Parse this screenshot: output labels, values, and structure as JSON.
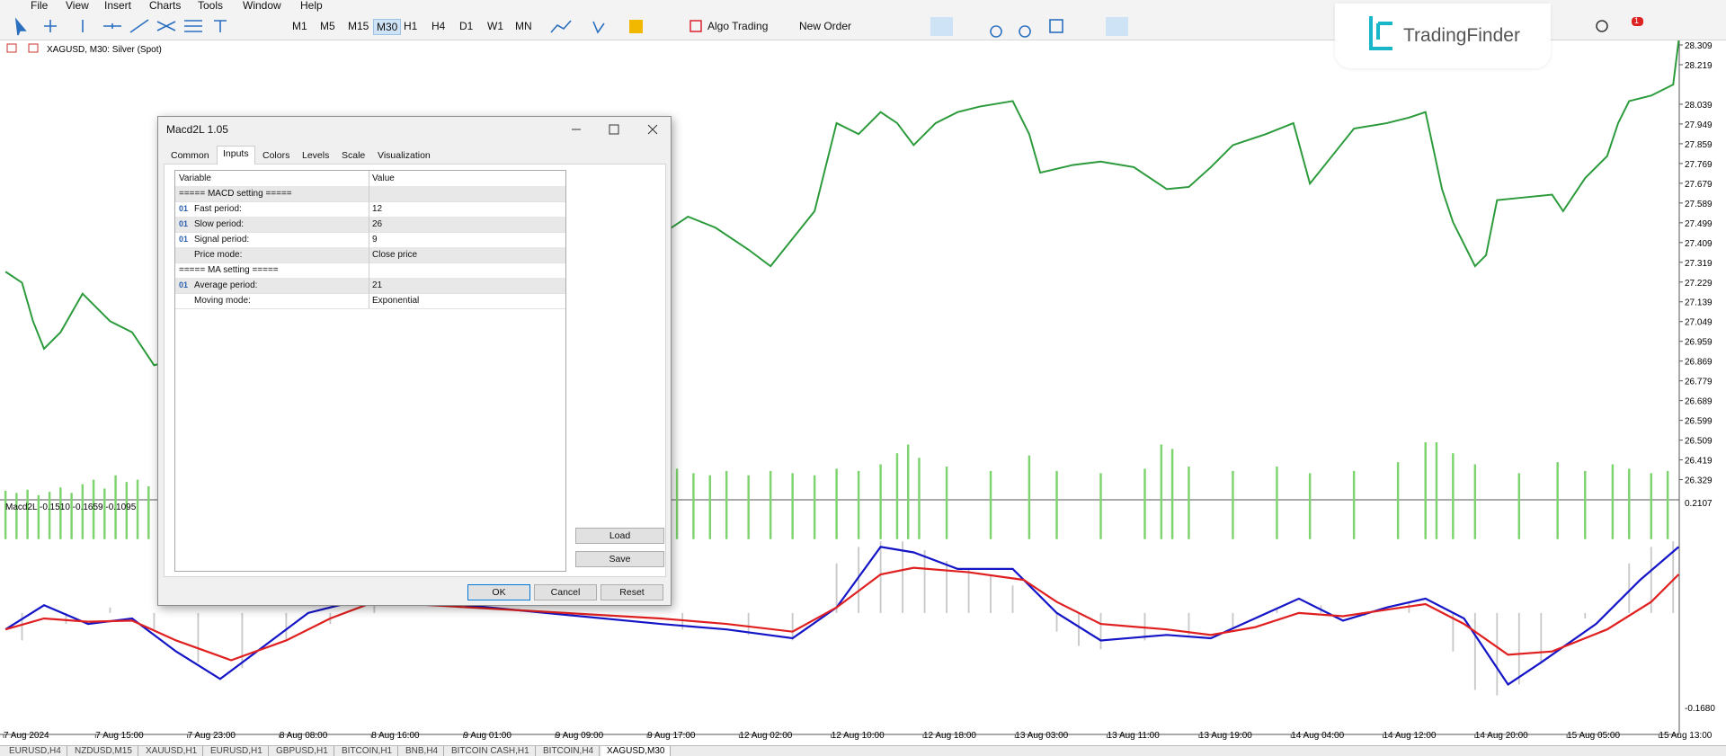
{
  "menu": [
    "File",
    "View",
    "Insert",
    "Charts",
    "Tools",
    "Window",
    "Help"
  ],
  "toolbar": {
    "timeframes": [
      "M1",
      "M5",
      "M15",
      "M30",
      "H1",
      "H4",
      "D1",
      "W1",
      "MN"
    ],
    "algo_trading": "Algo Trading",
    "new_order": "New Order",
    "notifications": "1"
  },
  "watermark": "TradingFinder",
  "chart": {
    "header": "XAGUSD, M30:  Silver (Spot)",
    "price_labels": [
      "28.309",
      "28.219",
      "28.039",
      "27.949",
      "27.859",
      "27.769",
      "27.679",
      "27.589",
      "27.499",
      "27.409",
      "27.319",
      "27.229",
      "27.139",
      "27.049",
      "26.959",
      "26.869",
      "26.779",
      "26.689",
      "26.599",
      "26.509",
      "26.419",
      "26.329"
    ],
    "indicator_label": "Macd2L -0.1510 -0.1659 -0.1095",
    "indicator_labels": [
      "0.2107",
      "-0.1680"
    ],
    "time_labels": [
      "7 Aug 2024",
      "7 Aug 15:00",
      "7 Aug 23:00",
      "8 Aug 08:00",
      "8 Aug 16:00",
      "9 Aug 01:00",
      "9 Aug 09:00",
      "9 Aug 17:00",
      "12 Aug 02:00",
      "12 Aug 10:00",
      "12 Aug 18:00",
      "13 Aug 03:00",
      "13 Aug 11:00",
      "13 Aug 19:00",
      "14 Aug 04:00",
      "14 Aug 12:00",
      "14 Aug 20:00",
      "15 Aug 05:00",
      "15 Aug 13:00"
    ]
  },
  "tabs": [
    "EURUSD,H4",
    "NZDUSD,M15",
    "XAUUSD,H1",
    "EURUSD,H1",
    "GBPUSD,H1",
    "BITCOIN,H1",
    "BNB,H4",
    "BITCOIN CASH,H1",
    "BITCOIN,H4",
    "XAGUSD,M30"
  ],
  "dialog": {
    "title": "Macd2L 1.05",
    "tabs": [
      "Common",
      "Inputs",
      "Colors",
      "Levels",
      "Scale",
      "Visualization"
    ],
    "table": {
      "header": [
        "Variable",
        "Value"
      ],
      "rows": [
        [
          "===== MACD setting =====",
          ""
        ],
        [
          "Fast period:",
          "12"
        ],
        [
          "Slow period:",
          "26"
        ],
        [
          "Signal period:",
          "9"
        ],
        [
          "Price mode:",
          "Close price"
        ],
        [
          "===== MA setting =====",
          ""
        ],
        [
          "Average period:",
          "21"
        ],
        [
          "Moving mode:",
          "Exponential"
        ]
      ],
      "icons": [
        "",
        "01",
        "01",
        "01",
        "",
        "",
        "01",
        ""
      ]
    },
    "buttons": [
      "Load",
      "Save",
      "OK",
      "Cancel",
      "Reset"
    ]
  }
}
